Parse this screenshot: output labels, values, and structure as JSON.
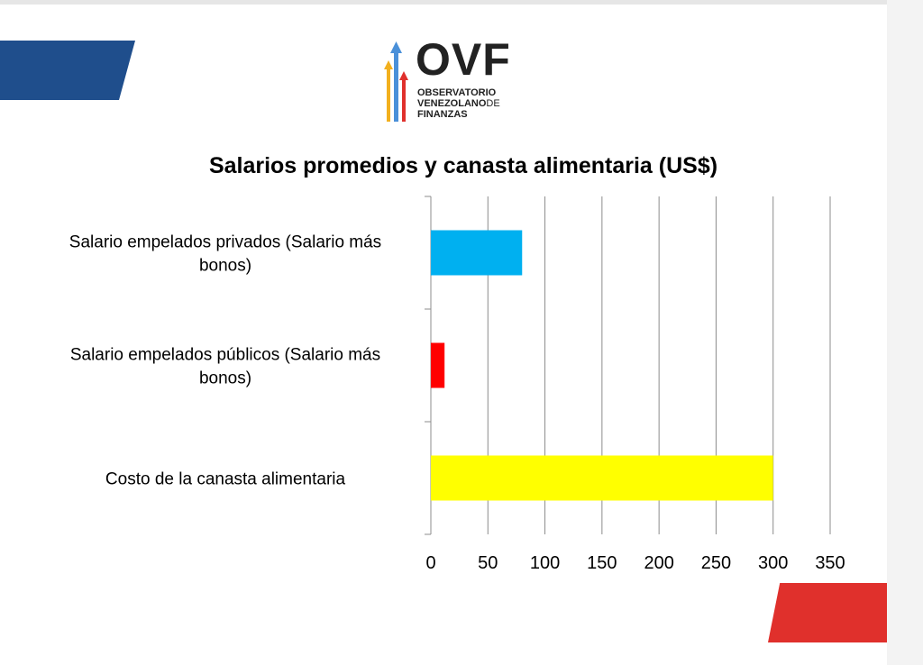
{
  "logo": {
    "name": "OVF",
    "line1": "OBSERVATORIO",
    "line2a": "VENEZOLANO",
    "line2b": "DE",
    "line3": "FINANZAS"
  },
  "colors": {
    "stripe_blue": "#1f4e8c",
    "stripe_red": "#e0302c",
    "bar_blue": "#00b0f0",
    "bar_red": "#ff0000",
    "bar_yellow": "#ffff00",
    "grid": "#8c8c8c"
  },
  "chart_data": {
    "type": "bar",
    "orientation": "horizontal",
    "title": "Salarios promedios y canasta alimentaria (US$)",
    "categories": [
      [
        "Salario empelados privados  (Salario más",
        "bonos)"
      ],
      [
        "Salario empelados públicos (Salario más",
        "bonos)"
      ],
      [
        "Costo de la canasta alimentaria"
      ]
    ],
    "values": [
      80,
      12,
      300
    ],
    "bar_colors": [
      "#00b0f0",
      "#ff0000",
      "#ffff00"
    ],
    "xlim": [
      0,
      350
    ],
    "xticks": [
      0,
      50,
      100,
      150,
      200,
      250,
      300,
      350
    ],
    "grid": true,
    "legend": "none"
  }
}
